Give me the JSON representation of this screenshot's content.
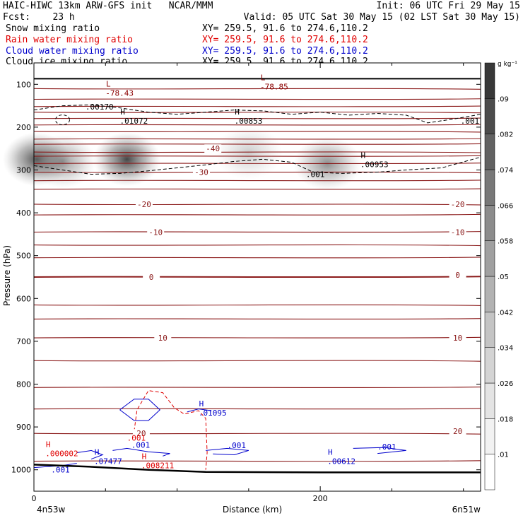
{
  "header": {
    "line1_left": "HAIC-HIWC 13km ARW-GFS init   NCAR/MMM",
    "line1_right": "Init: 06 UTC Fri 29 May 15",
    "line2_left": "Fcst:    23 h",
    "line2_right": "Valid: 05 UTC Sat 30 May 15 (02 LST Sat 30 May 15)",
    "fields": [
      {
        "name": "Snow mixing ratio",
        "xy": "XY= 259.5, 91.6 to 274.6,110.2",
        "color": "#000000"
      },
      {
        "name": "Rain water mixing ratio",
        "xy": "XY= 259.5, 91.6 to 274.6,110.2",
        "color": "#e00000"
      },
      {
        "name": "Cloud water mixing ratio",
        "xy": "XY= 259.5, 91.6 to 274.6,110.2",
        "color": "#0000cc"
      },
      {
        "name": "Cloud ice mixing ratio",
        "xy": "XY= 259.5, 91.6 to 274.6,110.2",
        "color": "#000000"
      }
    ]
  },
  "chart_data": {
    "type": "heatmap",
    "xlabel": "Distance (km)",
    "ylabel": "Pressure (hPa)",
    "x_ticks": [
      0,
      200
    ],
    "x_minor_ticks": [
      50,
      100,
      150,
      250,
      300
    ],
    "xlim": [
      0,
      312
    ],
    "y_ticks": [
      100,
      200,
      300,
      400,
      500,
      600,
      700,
      800,
      900,
      1000
    ],
    "ylim": [
      50,
      1050
    ],
    "x_start_label": "4n53w",
    "x_end_label": "6n51w",
    "colorbar": {
      "unit": "g kg⁻¹",
      "levels": [
        ".01",
        ".018",
        ".026",
        ".034",
        ".042",
        ".05",
        ".058",
        ".066",
        ".074",
        ".082",
        ".09"
      ],
      "colors": [
        "#ffffff",
        "#f2f2f2",
        "#e4e4e4",
        "#d4d4d4",
        "#c4c4c4",
        "#b2b2b2",
        "#a0a0a0",
        "#8c8c8c",
        "#787878",
        "#626262",
        "#4c4c4c",
        "#383838"
      ]
    },
    "snow_blobs": [
      {
        "x": 2,
        "p": 275,
        "intensity": 0.85
      },
      {
        "x": 65,
        "p": 275,
        "intensity": 0.9
      },
      {
        "x": 20,
        "p": 280,
        "intensity": 0.5
      },
      {
        "x": 150,
        "p": 260,
        "intensity": 0.25
      },
      {
        "x": 205,
        "p": 285,
        "intensity": 0.55
      }
    ],
    "temperature_contours": [
      {
        "label": "-40",
        "x": 125,
        "p_points": [
          [
            0,
            250
          ],
          [
            312,
            250
          ]
        ]
      },
      {
        "label": "-30",
        "x": 117,
        "p_points": [
          [
            0,
            305
          ],
          [
            312,
            305
          ]
        ]
      },
      {
        "label": "-20",
        "x": 77,
        "p_points": [
          [
            0,
            380
          ],
          [
            312,
            380
          ]
        ]
      },
      {
        "label": "-10",
        "x": 85,
        "p_points": [
          [
            0,
            445
          ],
          [
            312,
            445
          ]
        ]
      },
      {
        "label": "0",
        "x": 82,
        "p_points": [
          [
            0,
            550
          ],
          [
            100,
            545
          ],
          [
            200,
            545
          ],
          [
            312,
            545
          ]
        ]
      },
      {
        "label": "10",
        "x": 90,
        "p_points": [
          [
            0,
            692
          ],
          [
            312,
            692
          ]
        ]
      },
      {
        "label": "20",
        "x": 75,
        "p_points": [
          [
            0,
            915
          ],
          [
            312,
            910
          ]
        ]
      }
    ],
    "temperature_line_p": [
      110,
      135,
      152,
      165,
      180,
      195,
      210,
      228,
      240,
      258,
      268,
      285,
      305,
      325,
      345,
      380,
      405,
      445,
      475,
      505,
      550,
      615,
      648,
      692,
      745,
      808,
      858,
      915,
      980
    ],
    "right_labels": [
      {
        "label": "-20",
        "p": 380
      },
      {
        "label": "-10",
        "p": 445
      },
      {
        "label": "0",
        "p": 545
      },
      {
        "label": "10",
        "p": 692
      },
      {
        "label": "20",
        "p": 910
      }
    ],
    "extrema": [
      {
        "mark": "L",
        "value": "-78.43",
        "x": 50,
        "p": 115,
        "color": "#8b0000"
      },
      {
        "mark": "L",
        "value": "-78.85",
        "x": 158,
        "p": 100,
        "color": "#8b0000"
      },
      {
        "mark": "H",
        "value": ".01072",
        "x": 60,
        "p": 180,
        "color": "#000000"
      },
      {
        "mark": "H",
        "value": ".00853",
        "x": 140,
        "p": 180,
        "color": "#000000"
      },
      {
        "mark": "H",
        "value": ".00953",
        "x": 228,
        "p": 282,
        "color": "#000000"
      },
      {
        "mark": "H",
        "value": ".01095",
        "x": 115,
        "p": 862,
        "color": "#0000cc"
      },
      {
        "mark": "H",
        "value": ".07477",
        "x": 42,
        "p": 975,
        "color": "#0000cc"
      },
      {
        "mark": "H",
        "value": ".00612",
        "x": 205,
        "p": 975,
        "color": "#0000cc"
      },
      {
        "mark": "H",
        "value": ".000002",
        "x": 8,
        "p": 957,
        "color": "#e00000"
      },
      {
        "mark": "H",
        "value": ".008211",
        "x": 75,
        "p": 985,
        "color": "#e00000"
      }
    ],
    "contour_labels": [
      {
        "text": ".00170",
        "x": 36,
        "p": 152,
        "color": "#000000"
      },
      {
        "text": ".001",
        "x": 298,
        "p": 185,
        "color": "#000000"
      },
      {
        "text": ".001",
        "x": 190,
        "p": 310,
        "color": "#000000"
      },
      {
        "text": ".001",
        "x": 65,
        "p": 925,
        "color": "#e00000"
      },
      {
        "text": ".001",
        "x": 68,
        "p": 942,
        "color": "#0000cc"
      },
      {
        "text": ".001",
        "x": 135,
        "p": 943,
        "color": "#0000cc"
      },
      {
        "text": ".001",
        "x": 240,
        "p": 946,
        "color": "#0000cc"
      },
      {
        "text": ".001",
        "x": 12,
        "p": 1000,
        "color": "#0000cc"
      }
    ]
  }
}
